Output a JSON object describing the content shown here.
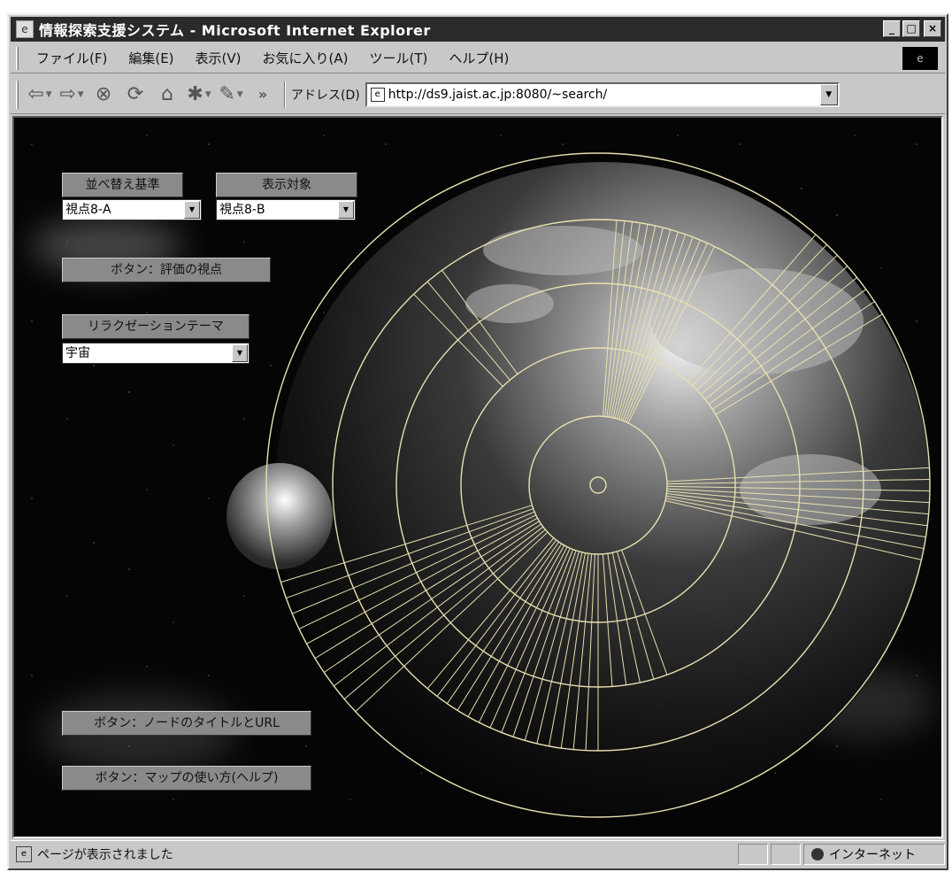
{
  "window": {
    "title": "情報探索支援システム - Microsoft Internet Explorer",
    "controls": {
      "minimize": "_",
      "maximize": "□",
      "close": "×"
    }
  },
  "menu": {
    "items": [
      "ファイル(F)",
      "編集(E)",
      "表示(V)",
      "お気に入り(A)",
      "ツール(T)",
      "ヘルプ(H)"
    ]
  },
  "toolbar": {
    "back_glyph": "⇦",
    "forward_glyph": "⇨",
    "stop_glyph": "⊗",
    "refresh_glyph": "⟳",
    "home_glyph": "⌂",
    "overflow_label": "»",
    "address_label": "アドレス(D)",
    "address_value": "http://ds9.jaist.ac.jp:8080/~search/"
  },
  "page": {
    "sort": {
      "label": "並べ替え基準",
      "value": "視点8-A"
    },
    "display": {
      "label": "表示対象",
      "value": "視点8-B"
    },
    "eval_button": "ボタン：評価の視点",
    "relax": {
      "label": "リラクゼーションテーマ",
      "value": "宇宙"
    },
    "node_button": "ボタン：ノードのタイトルとURL",
    "help_button": "ボタン：マップの使い方(ヘルプ)"
  },
  "status": {
    "text": "ページが表示されました",
    "zone": "インターネット"
  },
  "colors": {
    "background": "#050505",
    "map_lines": "#e8e0b0",
    "panel": "#8a8a8a"
  }
}
